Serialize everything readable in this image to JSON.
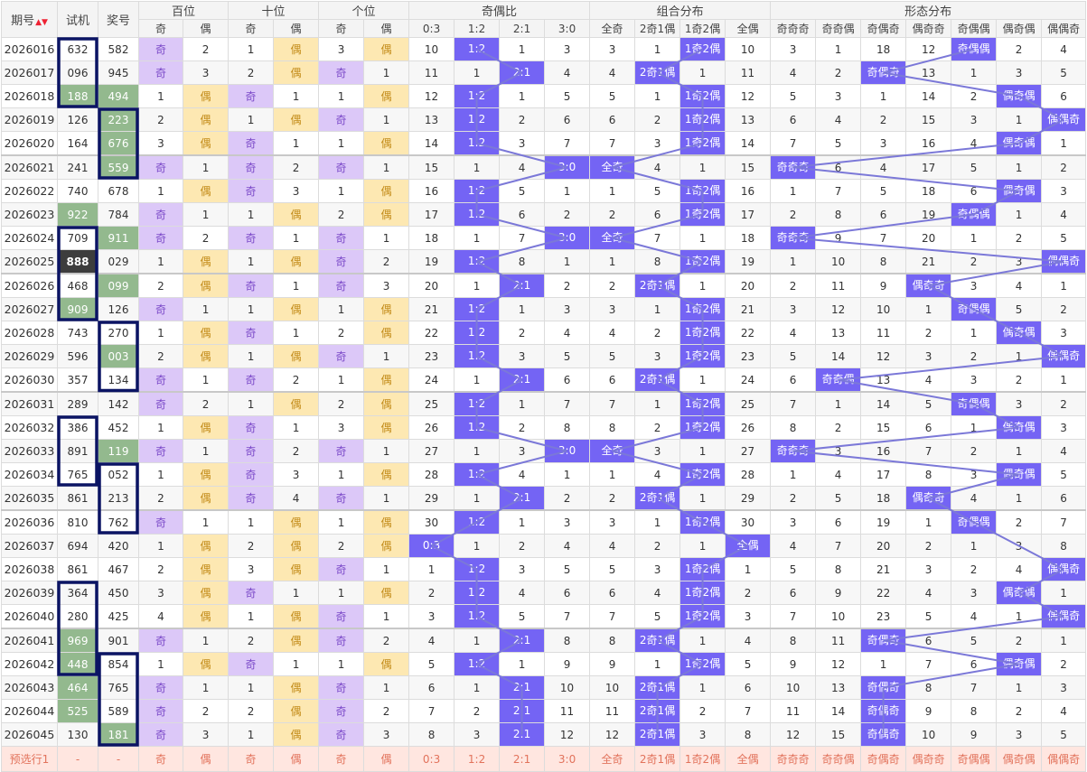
{
  "headers": {
    "period": "期号",
    "trial": "试机",
    "prize": "奖号",
    "hundreds": "百位",
    "tens": "十位",
    "units": "个位",
    "odd_even_ratio": "奇偶比",
    "combo": "组合分布",
    "shape": "形态分布",
    "sub": [
      "奇",
      "偶",
      "奇",
      "偶",
      "奇",
      "偶",
      "0:3",
      "1:2",
      "2:1",
      "3:0",
      "全奇",
      "2奇1偶",
      "1奇2偶",
      "全偶",
      "奇奇奇",
      "奇奇偶",
      "奇偶奇",
      "偶奇奇",
      "奇偶偶",
      "偶奇偶",
      "偶偶奇"
    ]
  },
  "sort_icon": "sort-icon",
  "colors": {
    "accent": "#7464f4",
    "odd": "#dcc8f8",
    "even": "#fde8b2",
    "repeat": "#93b98e",
    "frame": "#0b1464",
    "line": "#7b78d8"
  },
  "rows": [
    [
      "2026016",
      "632",
      "582",
      "奇",
      "2",
      "1",
      "偶",
      "3",
      "偶",
      "10",
      "1:2",
      "1",
      "3",
      "3",
      "1",
      "1奇2偶",
      "10",
      "3",
      "1",
      "18",
      "12",
      "奇偶偶",
      "2",
      "4"
    ],
    [
      "2026017",
      "096",
      "945",
      "奇",
      "3",
      "2",
      "偶",
      "奇",
      "1",
      "11",
      "1",
      "2:1",
      "4",
      "4",
      "2奇1偶",
      "1",
      "11",
      "4",
      "2",
      "奇偶奇",
      "13",
      "1",
      "3",
      "5"
    ],
    [
      "2026018",
      "188",
      "494",
      "1",
      "偶",
      "奇",
      "1",
      "1",
      "偶",
      "12",
      "1:2",
      "1",
      "5",
      "5",
      "1",
      "1奇2偶",
      "12",
      "5",
      "3",
      "1",
      "14",
      "2",
      "偶奇偶",
      "6"
    ],
    [
      "2026019",
      "126",
      "223",
      "2",
      "偶",
      "1",
      "偶",
      "奇",
      "1",
      "13",
      "1:2",
      "2",
      "6",
      "6",
      "2",
      "1奇2偶",
      "13",
      "6",
      "4",
      "2",
      "15",
      "3",
      "1",
      "偶偶奇"
    ],
    [
      "2026020",
      "164",
      "676",
      "3",
      "偶",
      "奇",
      "1",
      "1",
      "偶",
      "14",
      "1:2",
      "3",
      "7",
      "7",
      "3",
      "1奇2偶",
      "14",
      "7",
      "5",
      "3",
      "16",
      "4",
      "偶奇偶",
      "1"
    ],
    [
      "2026021",
      "241",
      "559",
      "奇",
      "1",
      "奇",
      "2",
      "奇",
      "1",
      "15",
      "1",
      "4",
      "3:0",
      "全奇",
      "4",
      "1",
      "15",
      "奇奇奇",
      "6",
      "4",
      "17",
      "5",
      "1",
      "2"
    ],
    [
      "2026022",
      "740",
      "678",
      "1",
      "偶",
      "奇",
      "3",
      "1",
      "偶",
      "16",
      "1:2",
      "5",
      "1",
      "1",
      "5",
      "1奇2偶",
      "16",
      "1",
      "7",
      "5",
      "18",
      "6",
      "偶奇偶",
      "3"
    ],
    [
      "2026023",
      "922",
      "784",
      "奇",
      "1",
      "1",
      "偶",
      "2",
      "偶",
      "17",
      "1:2",
      "6",
      "2",
      "2",
      "6",
      "1奇2偶",
      "17",
      "2",
      "8",
      "6",
      "19",
      "奇偶偶",
      "1",
      "4"
    ],
    [
      "2026024",
      "709",
      "911",
      "奇",
      "2",
      "奇",
      "1",
      "奇",
      "1",
      "18",
      "1",
      "7",
      "3:0",
      "全奇",
      "7",
      "1",
      "18",
      "奇奇奇",
      "9",
      "7",
      "20",
      "1",
      "2",
      "5"
    ],
    [
      "2026025",
      "888",
      "029",
      "1",
      "偶",
      "1",
      "偶",
      "奇",
      "2",
      "19",
      "1:2",
      "8",
      "1",
      "1",
      "8",
      "1奇2偶",
      "19",
      "1",
      "10",
      "8",
      "21",
      "2",
      "3",
      "偶偶奇"
    ],
    [
      "2026026",
      "468",
      "099",
      "2",
      "偶",
      "奇",
      "1",
      "奇",
      "3",
      "20",
      "1",
      "2:1",
      "2",
      "2",
      "2奇1偶",
      "1",
      "20",
      "2",
      "11",
      "9",
      "偶奇奇",
      "3",
      "4",
      "1"
    ],
    [
      "2026027",
      "909",
      "126",
      "奇",
      "1",
      "1",
      "偶",
      "1",
      "偶",
      "21",
      "1:2",
      "1",
      "3",
      "3",
      "1",
      "1奇2偶",
      "21",
      "3",
      "12",
      "10",
      "1",
      "奇偶偶",
      "5",
      "2"
    ],
    [
      "2026028",
      "743",
      "270",
      "1",
      "偶",
      "奇",
      "1",
      "2",
      "偶",
      "22",
      "1:2",
      "2",
      "4",
      "4",
      "2",
      "1奇2偶",
      "22",
      "4",
      "13",
      "11",
      "2",
      "1",
      "偶奇偶",
      "3"
    ],
    [
      "2026029",
      "596",
      "003",
      "2",
      "偶",
      "1",
      "偶",
      "奇",
      "1",
      "23",
      "1:2",
      "3",
      "5",
      "5",
      "3",
      "1奇2偶",
      "23",
      "5",
      "14",
      "12",
      "3",
      "2",
      "1",
      "偶偶奇"
    ],
    [
      "2026030",
      "357",
      "134",
      "奇",
      "1",
      "奇",
      "2",
      "1",
      "偶",
      "24",
      "1",
      "2:1",
      "6",
      "6",
      "2奇1偶",
      "1",
      "24",
      "6",
      "奇奇偶",
      "13",
      "4",
      "3",
      "2",
      "1"
    ],
    [
      "2026031",
      "289",
      "142",
      "奇",
      "2",
      "1",
      "偶",
      "2",
      "偶",
      "25",
      "1:2",
      "1",
      "7",
      "7",
      "1",
      "1奇2偶",
      "25",
      "7",
      "1",
      "14",
      "5",
      "奇偶偶",
      "3",
      "2"
    ],
    [
      "2026032",
      "386",
      "452",
      "1",
      "偶",
      "奇",
      "1",
      "3",
      "偶",
      "26",
      "1:2",
      "2",
      "8",
      "8",
      "2",
      "1奇2偶",
      "26",
      "8",
      "2",
      "15",
      "6",
      "1",
      "偶奇偶",
      "3"
    ],
    [
      "2026033",
      "891",
      "119",
      "奇",
      "1",
      "奇",
      "2",
      "奇",
      "1",
      "27",
      "1",
      "3",
      "3:0",
      "全奇",
      "3",
      "1",
      "27",
      "奇奇奇",
      "3",
      "16",
      "7",
      "2",
      "1",
      "4"
    ],
    [
      "2026034",
      "765",
      "052",
      "1",
      "偶",
      "奇",
      "3",
      "1",
      "偶",
      "28",
      "1:2",
      "4",
      "1",
      "1",
      "4",
      "1奇2偶",
      "28",
      "1",
      "4",
      "17",
      "8",
      "3",
      "偶奇偶",
      "5"
    ],
    [
      "2026035",
      "861",
      "213",
      "2",
      "偶",
      "奇",
      "4",
      "奇",
      "1",
      "29",
      "1",
      "2:1",
      "2",
      "2",
      "2奇1偶",
      "1",
      "29",
      "2",
      "5",
      "18",
      "偶奇奇",
      "4",
      "1",
      "6"
    ],
    [
      "2026036",
      "810",
      "762",
      "奇",
      "1",
      "1",
      "偶",
      "1",
      "偶",
      "30",
      "1:2",
      "1",
      "3",
      "3",
      "1",
      "1奇2偶",
      "30",
      "3",
      "6",
      "19",
      "1",
      "奇偶偶",
      "2",
      "7"
    ],
    [
      "2026037",
      "694",
      "420",
      "1",
      "偶",
      "2",
      "偶",
      "2",
      "偶",
      "0:3",
      "1",
      "2",
      "4",
      "4",
      "2",
      "1",
      "全偶",
      "4",
      "7",
      "20",
      "2",
      "1",
      "3",
      "8"
    ],
    [
      "2026038",
      "861",
      "467",
      "2",
      "偶",
      "3",
      "偶",
      "奇",
      "1",
      "1",
      "1:2",
      "3",
      "5",
      "5",
      "3",
      "1奇2偶",
      "1",
      "5",
      "8",
      "21",
      "3",
      "2",
      "4",
      "偶偶奇"
    ],
    [
      "2026039",
      "364",
      "450",
      "3",
      "偶",
      "奇",
      "1",
      "1",
      "偶",
      "2",
      "1:2",
      "4",
      "6",
      "6",
      "4",
      "1奇2偶",
      "2",
      "6",
      "9",
      "22",
      "4",
      "3",
      "偶奇偶",
      "1"
    ],
    [
      "2026040",
      "280",
      "425",
      "4",
      "偶",
      "1",
      "偶",
      "奇",
      "1",
      "3",
      "1:2",
      "5",
      "7",
      "7",
      "5",
      "1奇2偶",
      "3",
      "7",
      "10",
      "23",
      "5",
      "4",
      "1",
      "偶偶奇"
    ],
    [
      "2026041",
      "969",
      "901",
      "奇",
      "1",
      "2",
      "偶",
      "奇",
      "2",
      "4",
      "1",
      "2:1",
      "8",
      "8",
      "2奇1偶",
      "1",
      "4",
      "8",
      "11",
      "奇偶奇",
      "6",
      "5",
      "2",
      "1"
    ],
    [
      "2026042",
      "448",
      "854",
      "1",
      "偶",
      "奇",
      "1",
      "1",
      "偶",
      "5",
      "1:2",
      "1",
      "9",
      "9",
      "1",
      "1奇2偶",
      "5",
      "9",
      "12",
      "1",
      "7",
      "6",
      "偶奇偶",
      "2"
    ],
    [
      "2026043",
      "464",
      "765",
      "奇",
      "1",
      "1",
      "偶",
      "奇",
      "1",
      "6",
      "1",
      "2:1",
      "10",
      "10",
      "2奇1偶",
      "1",
      "6",
      "10",
      "13",
      "奇偶奇",
      "8",
      "7",
      "1",
      "3"
    ],
    [
      "2026044",
      "525",
      "589",
      "奇",
      "2",
      "2",
      "偶",
      "奇",
      "2",
      "7",
      "2",
      "2:1",
      "11",
      "11",
      "2奇1偶",
      "2",
      "7",
      "11",
      "14",
      "奇偶奇",
      "9",
      "8",
      "2",
      "4"
    ],
    [
      "2026045",
      "130",
      "181",
      "奇",
      "3",
      "1",
      "偶",
      "奇",
      "3",
      "8",
      "3",
      "2:1",
      "12",
      "12",
      "2奇1偶",
      "3",
      "8",
      "12",
      "15",
      "奇偶奇",
      "10",
      "9",
      "3",
      "5"
    ]
  ],
  "pre_row": {
    "label": "预选行1",
    "trial": "-",
    "prize": "-",
    "cells": [
      "奇",
      "偶",
      "奇",
      "偶",
      "奇",
      "偶",
      "0:3",
      "1:2",
      "2:1",
      "3:0",
      "全奇",
      "2奇1偶",
      "1奇2偶",
      "全偶",
      "奇奇奇",
      "奇奇偶",
      "奇偶奇",
      "偶奇奇",
      "奇偶偶",
      "偶奇偶",
      "偶偶奇"
    ]
  },
  "trial_green": [
    "2026018",
    "2026023",
    "2026027",
    "2026041",
    "2026042",
    "2026043",
    "2026044"
  ],
  "trial_dark": [
    "2026025"
  ],
  "prize_green": [
    "2026018",
    "2026019",
    "2026020",
    "2026021",
    "2026024",
    "2026026",
    "2026029",
    "2026033",
    "2026045"
  ],
  "trial_frames": [
    [
      "2026016",
      "2026018"
    ],
    [
      "2026024",
      "2026027"
    ],
    [
      "2026032",
      "2026034"
    ],
    [
      "2026039",
      "2026042"
    ]
  ],
  "prize_frames": [
    [
      "2026019",
      "2026021"
    ],
    [
      "2026028",
      "2026030"
    ],
    [
      "2026034",
      "2026036"
    ],
    [
      "2026042",
      "2026045"
    ]
  ]
}
